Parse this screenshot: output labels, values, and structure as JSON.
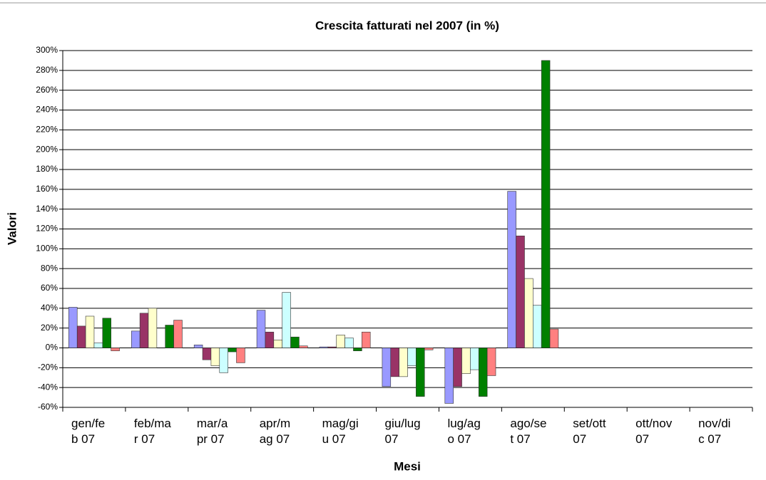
{
  "chart_data": {
    "type": "bar",
    "title": "Crescita fatturati nel 2007 (in %)",
    "x_label": "Mesi",
    "y_label": "Valori",
    "categories": [
      "gen/feb 07",
      "feb/mar 07",
      "mar/apr 07",
      "apr/mag 07",
      "mag/giu 07",
      "giu/lug 07",
      "lug/ago 07",
      "ago/set 07",
      "set/ott 07",
      "ott/nov 07",
      "nov/dic 07"
    ],
    "series": [
      {
        "color": "#9999ff",
        "values": [
          41,
          17,
          3,
          38,
          1,
          -39,
          -56,
          158,
          null,
          null,
          null
        ]
      },
      {
        "color": "#993366",
        "values": [
          22,
          35,
          -12,
          16,
          1,
          -29,
          -39,
          113,
          null,
          null,
          null
        ]
      },
      {
        "color": "#ffffcc",
        "values": [
          32,
          40,
          -18,
          8,
          13,
          -29,
          -26,
          70,
          null,
          null,
          null
        ]
      },
      {
        "color": "#ccffff",
        "values": [
          5,
          0,
          -25,
          56,
          10,
          -18,
          -22,
          43,
          null,
          null,
          null
        ]
      },
      {
        "color": "#008000",
        "values": [
          30,
          23,
          -4,
          11,
          -3,
          -49,
          -49,
          290,
          null,
          null,
          null
        ]
      },
      {
        "color": "#ff8080",
        "values": [
          -3,
          28,
          -15,
          2,
          16,
          -2,
          -28,
          19,
          null,
          null,
          null
        ]
      }
    ],
    "ylim": [
      -60,
      300
    ],
    "yticks": [
      {
        "value": -60,
        "label": "-60%"
      },
      {
        "value": -40,
        "label": "-40%"
      },
      {
        "value": -20,
        "label": "-20%"
      },
      {
        "value": 0,
        "label": "0%"
      },
      {
        "value": 20,
        "label": "20%"
      },
      {
        "value": 40,
        "label": "40%"
      },
      {
        "value": 60,
        "label": "60%"
      },
      {
        "value": 80,
        "label": "80%"
      },
      {
        "value": 100,
        "label": "100%"
      },
      {
        "value": 120,
        "label": "120%"
      },
      {
        "value": 140,
        "label": "140%"
      },
      {
        "value": 160,
        "label": "160%"
      },
      {
        "value": 180,
        "label": "180%"
      },
      {
        "value": 200,
        "label": "200%"
      },
      {
        "value": 220,
        "label": "220%"
      },
      {
        "value": 240,
        "label": "240%"
      },
      {
        "value": 260,
        "label": "260%"
      },
      {
        "value": 280,
        "label": "280%"
      },
      {
        "value": 300,
        "label": "300%"
      }
    ],
    "grid": true
  }
}
